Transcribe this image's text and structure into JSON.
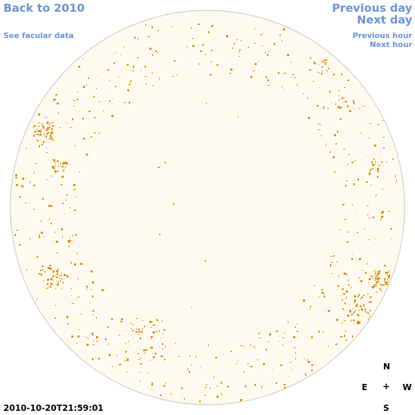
{
  "nav": {
    "back": "Back to 2010",
    "facular": "See facular data",
    "previous_day": "Previous day",
    "next_day": "Next day",
    "previous_hour": "Previous hour",
    "next_hour": "Next hour"
  },
  "compass": {
    "north": "N",
    "east": "E",
    "center": "+",
    "west": "W",
    "south": "S"
  },
  "timestamp": "2010-10-20T21:59:01",
  "colors": {
    "link": "#6b93d6",
    "disk_fill": "#fffaf0",
    "disk_edge": "#c8c4bc",
    "facula": "#e68a00"
  }
}
